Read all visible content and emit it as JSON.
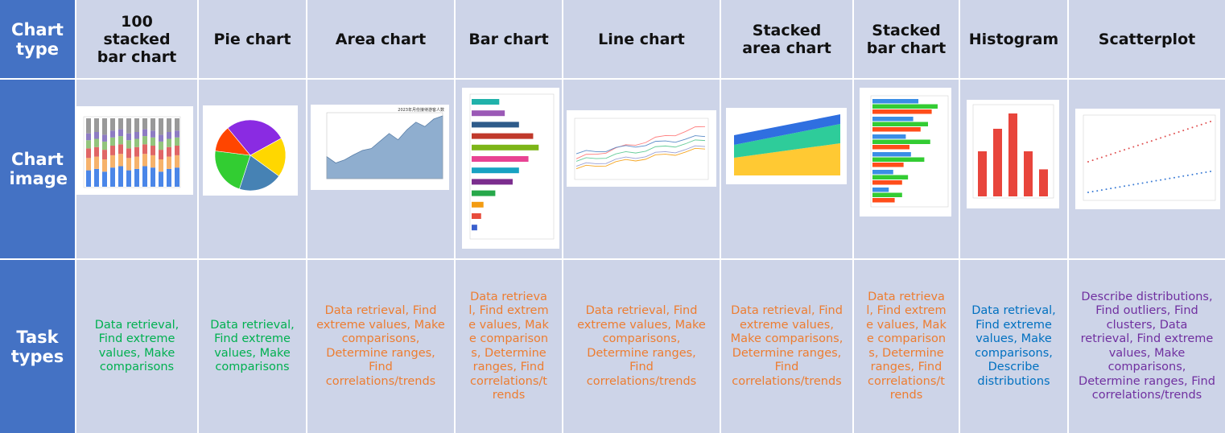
{
  "row_headers": {
    "chart_type": "Chart type",
    "chart_image": "Chart image",
    "task_types": "Task types"
  },
  "colors": {
    "header_blue": "#4472c4",
    "cell_bg": "#cdd4e8",
    "green": "#00b050",
    "orange": "#ed7d31",
    "blue": "#0070c0",
    "purple": "#7030a0"
  },
  "columns": [
    {
      "chart_type": "100 stacked bar chart",
      "tasks": "Data retrieval, Find extreme values, Make comparisons",
      "task_color": "green"
    },
    {
      "chart_type": "Pie chart",
      "tasks": "Data retrieval, Find extreme values, Make comparisons",
      "task_color": "green"
    },
    {
      "chart_type": "Area chart",
      "tasks": "Data retrieval, Find extreme values, Make comparisons, Determine ranges, Find correlations/trends",
      "task_color": "orange"
    },
    {
      "chart_type": "Bar chart",
      "tasks": "Data retrieval, Find extreme values, Make comparisons, Determine ranges, Find correlations/trends",
      "task_color": "orange"
    },
    {
      "chart_type": "Line chart",
      "tasks": "Data retrieval, Find extreme values, Make comparisons, Determine ranges, Find correlations/trends",
      "task_color": "orange"
    },
    {
      "chart_type": "Stacked area chart",
      "tasks": "Data retrieval, Find extreme values, Make comparisons, Determine ranges, Find correlations/trends",
      "task_color": "orange"
    },
    {
      "chart_type": "Stacked bar chart",
      "tasks": "Data retrieval, Find extreme values, Make comparisons, Determine ranges, Find correlations/trends",
      "task_color": "orange"
    },
    {
      "chart_type": "Histogram",
      "tasks": "Data retrieval, Find extreme values, Make comparisons, Describe distributions",
      "task_color": "blue"
    },
    {
      "chart_type": "Scatterplot",
      "tasks": "Describe distributions, Find outliers, Find clusters, Data retrieval, Find extreme values, Make comparisons, Determine ranges, Find correlations/trends",
      "task_color": "purple"
    }
  ],
  "thumbnails": {
    "area_title": "2023年月份接待游客人数"
  }
}
